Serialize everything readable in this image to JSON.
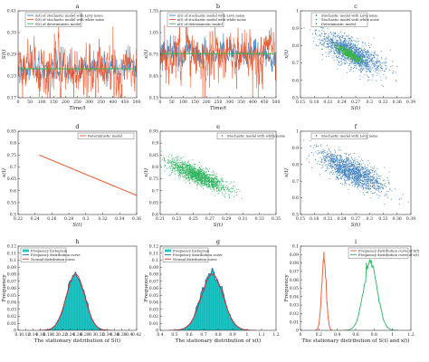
{
  "figure": {
    "colors": {
      "levy": "#3a7ebf",
      "white": "#e8542b",
      "det": "#3ab54a",
      "scatter_white": "#2db35d",
      "hist": "#19c6c6",
      "hist_edge": "#0a8c8c",
      "normal": "#d62e2e",
      "freq_curve": "#2d5ea8",
      "curve_S": "#e8542b",
      "curve_x": "#2db35d"
    }
  },
  "chart_data": [
    {
      "id": "a",
      "panel_label": "a",
      "type": "line",
      "ylabel": "S(t)",
      "xlabel": "Time/t",
      "xlim": [
        0,
        500
      ],
      "ylim": [
        0.17,
        0.41
      ],
      "xticks": [
        0,
        50,
        100,
        150,
        200,
        250,
        300,
        350,
        400,
        450,
        500
      ],
      "yticks": [
        0.17,
        0.23,
        0.29,
        0.35,
        0.41
      ],
      "legend": [
        "S(t) of stochastic model with Lévy noise",
        "S(t) of stochastic model with white noise",
        "S(t) of deterministic model"
      ],
      "series": [
        {
          "name": "S(t) of stochastic model with Lévy noise",
          "color_key": "levy",
          "mean": 0.25,
          "amp": 0.015,
          "spike": 0.02
        },
        {
          "name": "S(t) of stochastic model with white noise",
          "color_key": "white",
          "mean": 0.25,
          "amp": 0.03,
          "spike": 0.09
        },
        {
          "name": "S(t) of deterministic model",
          "color_key": "det",
          "value": 0.25
        }
      ]
    },
    {
      "id": "b",
      "panel_label": "b",
      "type": "line",
      "ylabel": "x(t)",
      "xlabel": "Time/t",
      "xlim": [
        0,
        500
      ],
      "ylim": [
        0.15,
        1.35
      ],
      "xticks": [
        0,
        50,
        100,
        150,
        200,
        250,
        300,
        350,
        400,
        450,
        500
      ],
      "yticks": [
        0.15,
        0.45,
        0.75,
        1.05,
        1.35
      ],
      "legend": [
        "x(t) of stochastic model with Lévy noise",
        "x(t) of stochastic model with white noise",
        "x(t) of deterministic model"
      ],
      "series": [
        {
          "name": "x(t) of stochastic model with Lévy noise",
          "color_key": "levy",
          "mean": 0.76,
          "amp": 0.07,
          "spike": 0.12
        },
        {
          "name": "x(t) of stochastic model with white noise",
          "color_key": "white",
          "mean": 0.76,
          "amp": 0.15,
          "spike": 0.45
        },
        {
          "name": "x(t) of deterministic model",
          "color_key": "det",
          "value": 0.76
        }
      ]
    },
    {
      "id": "c",
      "panel_label": "c",
      "type": "scatter",
      "ylabel": "x(t)",
      "xlabel": "S(t)",
      "xlim": [
        0.15,
        0.39
      ],
      "ylim": [
        0.5,
        1.0
      ],
      "xticks": [
        0.15,
        0.18,
        0.21,
        0.24,
        0.27,
        0.3,
        0.33,
        0.36,
        0.39
      ],
      "yticks": [
        0.5,
        0.6,
        0.7,
        0.8,
        0.9,
        1.0
      ],
      "legend": [
        "Stochastic model with Lévy noise",
        "Stochastic model with white noise",
        "Deterministic model"
      ],
      "clouds": [
        {
          "color_key": "levy",
          "cx": 0.26,
          "cy": 0.76,
          "sx": 0.035,
          "sy": 0.06,
          "rho": -0.75
        },
        {
          "color_key": "det",
          "cx": 0.255,
          "cy": 0.755,
          "sx": 0.013,
          "sy": 0.022,
          "rho": -0.85
        }
      ]
    },
    {
      "id": "d",
      "panel_label": "d",
      "type": "line",
      "ylabel": "x(t)",
      "xlabel": "S(t)",
      "xlim": [
        0.22,
        0.36
      ],
      "ylim": [
        0.5,
        0.85
      ],
      "xticks": [
        0.22,
        0.24,
        0.26,
        0.28,
        0.3,
        0.32,
        0.34,
        0.36
      ],
      "yticks": [
        0.5,
        0.55,
        0.6,
        0.65,
        0.7,
        0.75,
        0.8,
        0.85
      ],
      "legend": [
        "Deterministic model"
      ],
      "series": [
        {
          "name": "Deterministic model",
          "color_key": "white",
          "points": [
            [
              0.245,
              0.75
            ],
            [
              0.36,
              0.58
            ]
          ]
        }
      ]
    },
    {
      "id": "e",
      "panel_label": "e",
      "type": "scatter",
      "ylabel": "x(t)",
      "xlabel": "S(t)",
      "xlim": [
        0.21,
        0.35
      ],
      "ylim": [
        0.6,
        0.95
      ],
      "xticks": [
        0.21,
        0.23,
        0.25,
        0.27,
        0.29,
        0.31,
        0.33,
        0.35
      ],
      "yticks": [
        0.6,
        0.65,
        0.7,
        0.75,
        0.8,
        0.85,
        0.9,
        0.95
      ],
      "legend": [
        "Stochastic model with white noise"
      ],
      "clouds": [
        {
          "color_key": "scatter_white",
          "cx": 0.255,
          "cy": 0.765,
          "sx": 0.017,
          "sy": 0.032,
          "rho": -0.82
        }
      ]
    },
    {
      "id": "f",
      "panel_label": "f",
      "type": "scatter",
      "ylabel": "x(t)",
      "xlabel": "S(t)",
      "xlim": [
        0.15,
        0.39
      ],
      "ylim": [
        0.5,
        1.0
      ],
      "xticks": [
        0.15,
        0.18,
        0.21,
        0.24,
        0.27,
        0.3,
        0.33,
        0.36,
        0.39
      ],
      "yticks": [
        0.5,
        0.6,
        0.7,
        0.8,
        0.9,
        1.0
      ],
      "legend": [
        "Stochastic model with Lévy noise"
      ],
      "clouds": [
        {
          "color_key": "levy",
          "cx": 0.26,
          "cy": 0.76,
          "sx": 0.035,
          "sy": 0.06,
          "rho": -0.75
        }
      ]
    },
    {
      "id": "h",
      "panel_label": "h",
      "type": "bar",
      "ylabel": "Frequency",
      "xlabel": "The stationary distribution of S(t)",
      "xlim": [
        0.1,
        0.42
      ],
      "ylim": [
        0,
        0.12
      ],
      "xticks": [
        0.1,
        0.12,
        0.14,
        0.16,
        0.18,
        0.2,
        0.22,
        0.24,
        0.26,
        0.28,
        0.3,
        0.32,
        0.34,
        0.36,
        0.38,
        0.4,
        0.42
      ],
      "yticks": [
        0,
        0.01,
        0.02,
        0.03,
        0.04,
        0.05,
        0.06,
        0.07,
        0.08,
        0.09,
        0.1,
        0.11,
        0.12
      ],
      "legend": [
        "Frequency histogram",
        "Frequency distribution curve",
        "Normal distribution curve"
      ],
      "mean": 0.255,
      "sd": 0.025,
      "peak": 0.08,
      "bins": 55
    },
    {
      "id": "g",
      "panel_label": "g",
      "type": "bar",
      "ylabel": "Frequency",
      "xlabel": "The stationary distribution of x(t)",
      "xlim": [
        0.4,
        1.2
      ],
      "ylim": [
        0,
        0.12
      ],
      "xticks": [
        0.4,
        0.5,
        0.6,
        0.7,
        0.8,
        0.9,
        1.0,
        1.1,
        1.2
      ],
      "yticks": [
        0,
        0.01,
        0.02,
        0.03,
        0.04,
        0.05,
        0.06,
        0.07,
        0.08,
        0.09,
        0.1,
        0.11,
        0.12
      ],
      "legend": [
        "Frequency histogram",
        "Frequency distribution curve",
        "Normal distribution curve"
      ],
      "mean": 0.76,
      "sd": 0.075,
      "peak": 0.08,
      "bins": 55
    },
    {
      "id": "i",
      "panel_label": "i",
      "type": "line",
      "ylabel": "Frequency",
      "xlabel": "The stationary distribution of S(t) and x(t)",
      "xlim": [
        0,
        1.2
      ],
      "ylim": [
        0,
        0.1
      ],
      "xticks": [
        0,
        0.2,
        0.4,
        0.6,
        0.8,
        1.0,
        1.2
      ],
      "yticks": [
        0,
        0.01,
        0.02,
        0.03,
        0.04,
        0.05,
        0.06,
        0.07,
        0.08,
        0.09,
        0.1
      ],
      "legend": [
        "Frequency distribution curve of S(t)",
        "Frequency distribution curve of x(t)"
      ],
      "curves": [
        {
          "name": "Frequency distribution curve of S(t)",
          "color_key": "curve_S",
          "mean": 0.255,
          "sd": 0.025,
          "peak": 0.083
        },
        {
          "name": "Frequency distribution curve of x(t)",
          "color_key": "curve_x",
          "mean": 0.76,
          "sd": 0.075,
          "peak": 0.08
        }
      ]
    }
  ]
}
